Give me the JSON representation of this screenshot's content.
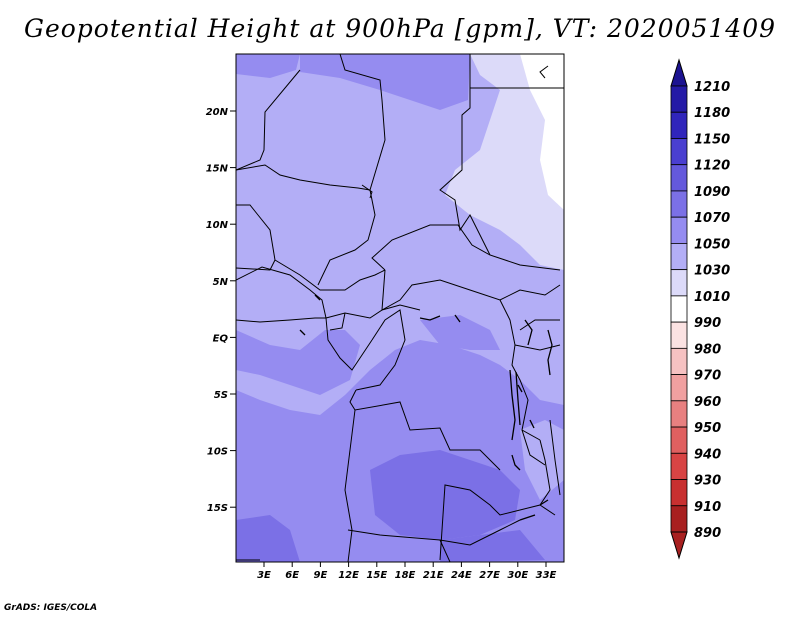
{
  "title": "Geopotential Height at 900hPa [gpm], VT: 2020051409",
  "credit": "GrADS: IGES/COLA",
  "map": {
    "lat_labels": [
      "20N",
      "15N",
      "10N",
      "5N",
      "EQ",
      "5S",
      "10S",
      "15S"
    ],
    "lon_labels": [
      "3E",
      "6E",
      "9E",
      "12E",
      "15E",
      "18E",
      "21E",
      "24E",
      "27E",
      "30E",
      "33E"
    ],
    "region_colors": {
      "deep": "#7b70e6",
      "medium": "#958cf0",
      "light": "#b3aef6",
      "pale": "#dcdaf9",
      "white": "#ffffff"
    }
  },
  "colorbar": {
    "levels": [
      {
        "label": "1210",
        "color": "#1c1391"
      },
      {
        "label": "1180",
        "color": "#241aa6"
      },
      {
        "label": "1150",
        "color": "#3025bb"
      },
      {
        "label": "1120",
        "color": "#4a3fd0"
      },
      {
        "label": "1090",
        "color": "#6459dc"
      },
      {
        "label": "1070",
        "color": "#7b70e6"
      },
      {
        "label": "1050",
        "color": "#958cf0"
      },
      {
        "label": "1030",
        "color": "#b3aef6"
      },
      {
        "label": "1010",
        "color": "#dcdaf9"
      },
      {
        "label": "990",
        "color": "#ffffff"
      },
      {
        "label": "980",
        "color": "#fbe2e2"
      },
      {
        "label": "970",
        "color": "#f6c2c2"
      },
      {
        "label": "960",
        "color": "#f0a0a0"
      },
      {
        "label": "950",
        "color": "#e88080"
      },
      {
        "label": "940",
        "color": "#e06060"
      },
      {
        "label": "930",
        "color": "#d84444"
      },
      {
        "label": "910",
        "color": "#c83030"
      },
      {
        "label": "890",
        "color": "#a82020"
      }
    ]
  }
}
